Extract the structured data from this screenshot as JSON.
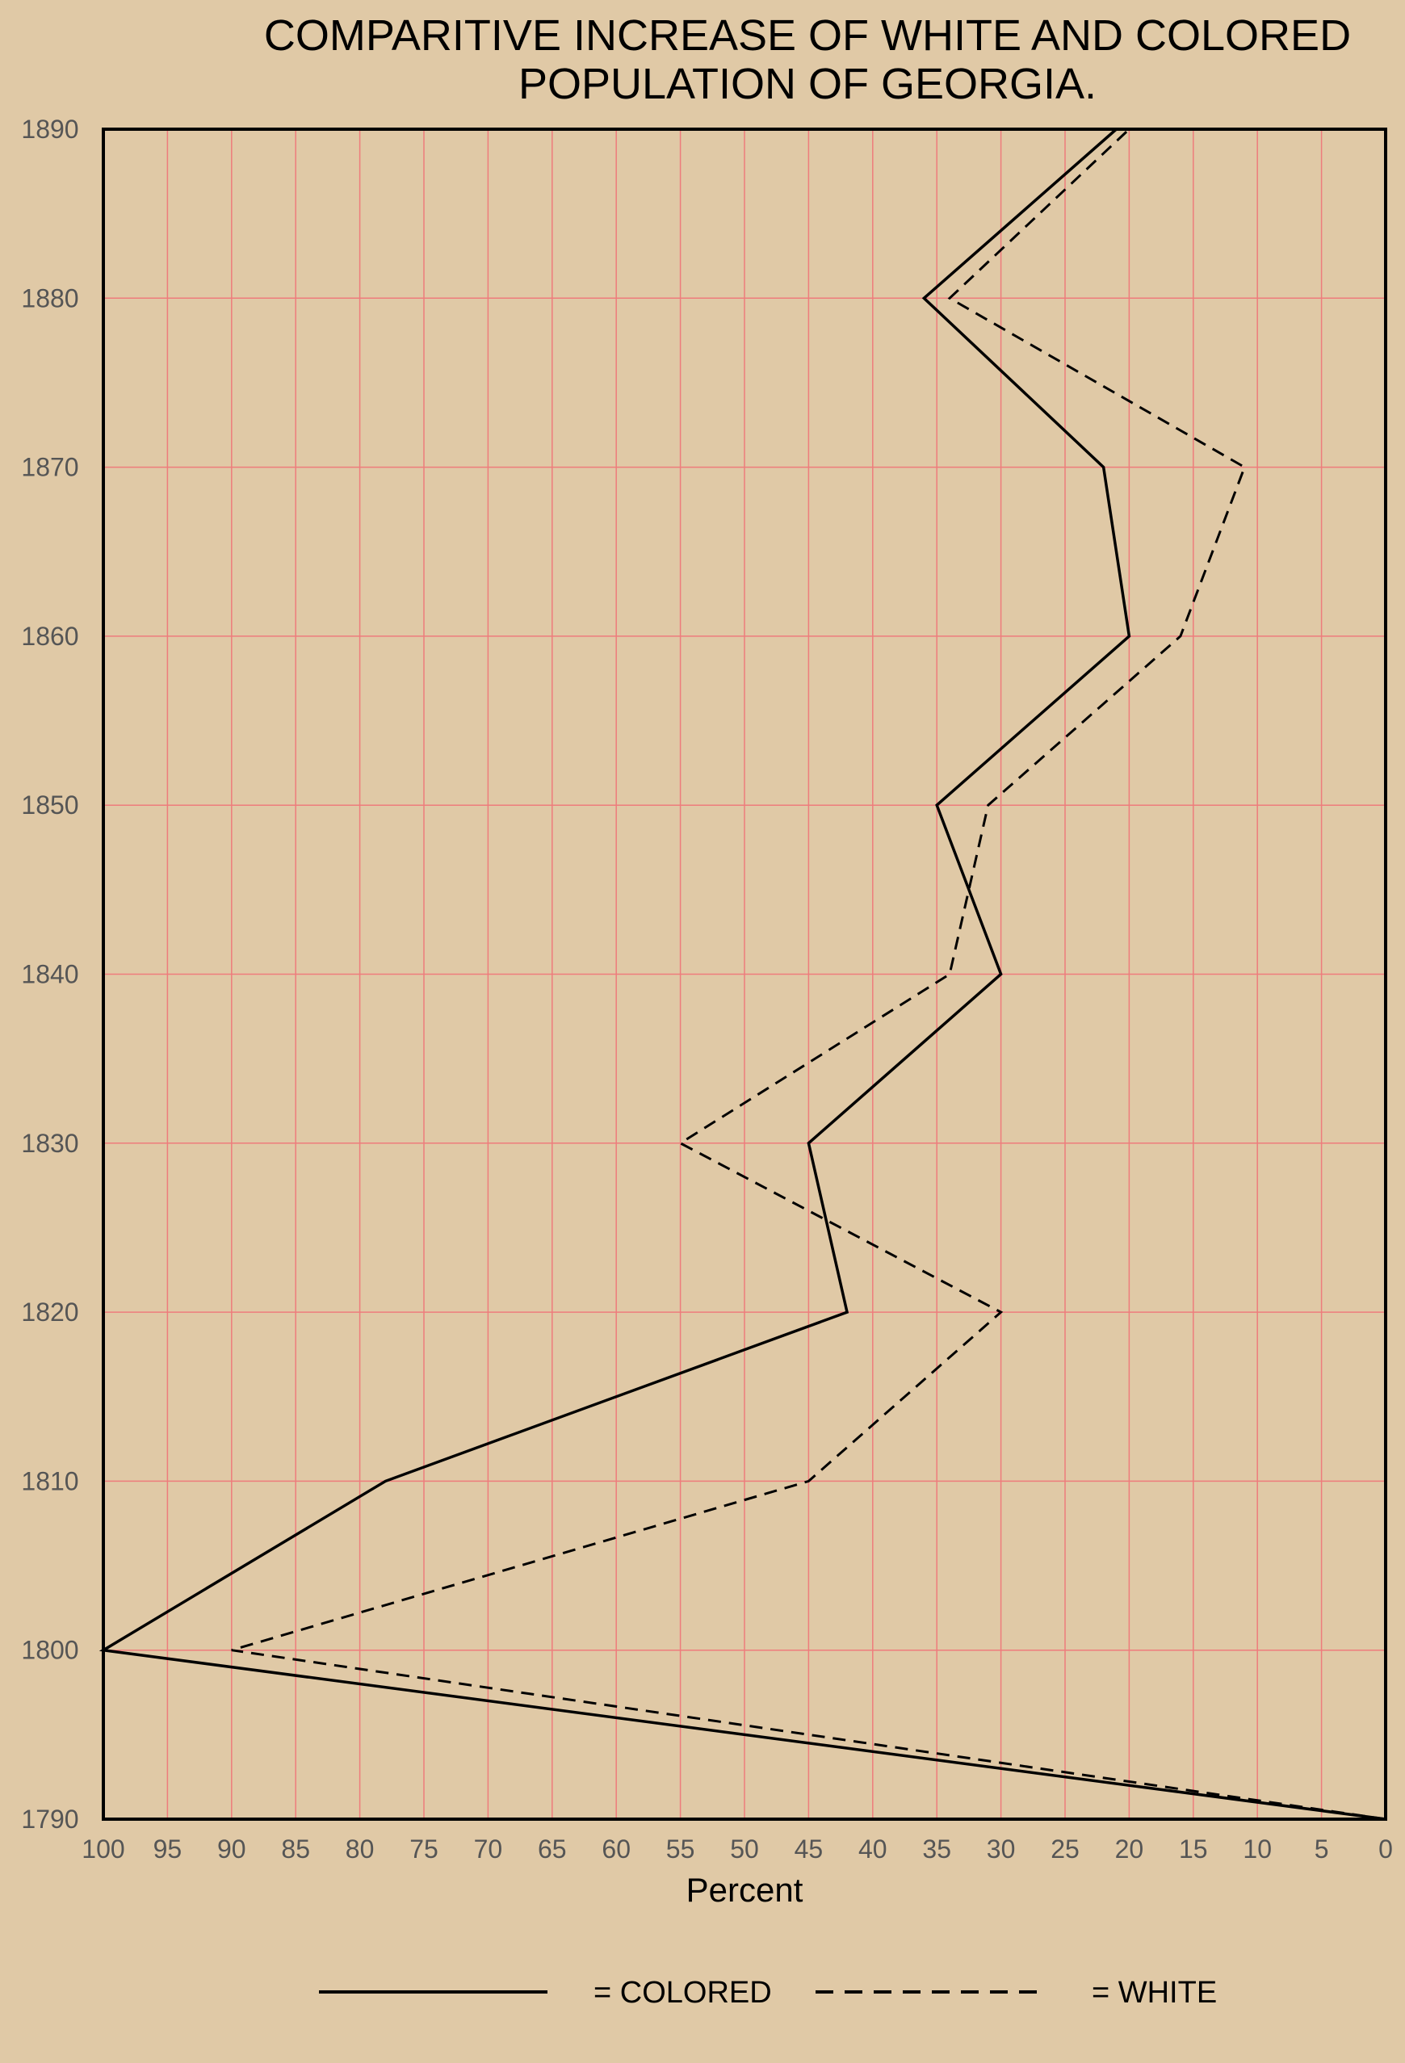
{
  "chart_data": {
    "type": "line",
    "title": [
      "COMPARITIVE INCREASE OF WHITE AND COLORED",
      "POPULATION OF GEORGIA."
    ],
    "xlabel": "Percent",
    "ylabel": "",
    "x_reversed": true,
    "xlim": [
      0,
      100
    ],
    "ylim": [
      1790,
      1890
    ],
    "x_ticks": [
      100,
      95,
      90,
      85,
      80,
      75,
      70,
      65,
      60,
      55,
      50,
      45,
      40,
      35,
      30,
      25,
      20,
      15,
      10,
      5,
      0
    ],
    "y_ticks": [
      1890,
      1880,
      1870,
      1860,
      1850,
      1840,
      1830,
      1820,
      1810,
      1800,
      1790
    ],
    "grid": true,
    "legend_position": "bottom",
    "series": [
      {
        "name": "COLORED",
        "style": "solid",
        "points": [
          {
            "year": 1790,
            "percent": 0
          },
          {
            "year": 1800,
            "percent": 100
          },
          {
            "year": 1810,
            "percent": 78
          },
          {
            "year": 1820,
            "percent": 42
          },
          {
            "year": 1830,
            "percent": 45
          },
          {
            "year": 1840,
            "percent": 30
          },
          {
            "year": 1850,
            "percent": 35
          },
          {
            "year": 1860,
            "percent": 20
          },
          {
            "year": 1870,
            "percent": 22
          },
          {
            "year": 1880,
            "percent": 36
          },
          {
            "year": 1890,
            "percent": 21
          }
        ]
      },
      {
        "name": "WHITE",
        "style": "dashed",
        "points": [
          {
            "year": 1790,
            "percent": 0
          },
          {
            "year": 1800,
            "percent": 90
          },
          {
            "year": 1810,
            "percent": 45
          },
          {
            "year": 1820,
            "percent": 30
          },
          {
            "year": 1830,
            "percent": 55
          },
          {
            "year": 1840,
            "percent": 34
          },
          {
            "year": 1850,
            "percent": 31
          },
          {
            "year": 1860,
            "percent": 16
          },
          {
            "year": 1870,
            "percent": 11
          },
          {
            "year": 1880,
            "percent": 34
          },
          {
            "year": 1890,
            "percent": 20
          }
        ]
      }
    ],
    "legend": [
      {
        "label": "= COLORED",
        "style": "solid"
      },
      {
        "label": "= WHITE",
        "style": "dashed"
      }
    ]
  },
  "colors": {
    "background": "#e0c9a6",
    "grid": "#ee7c7c",
    "line": "#000000",
    "tick_label": "#555555"
  }
}
